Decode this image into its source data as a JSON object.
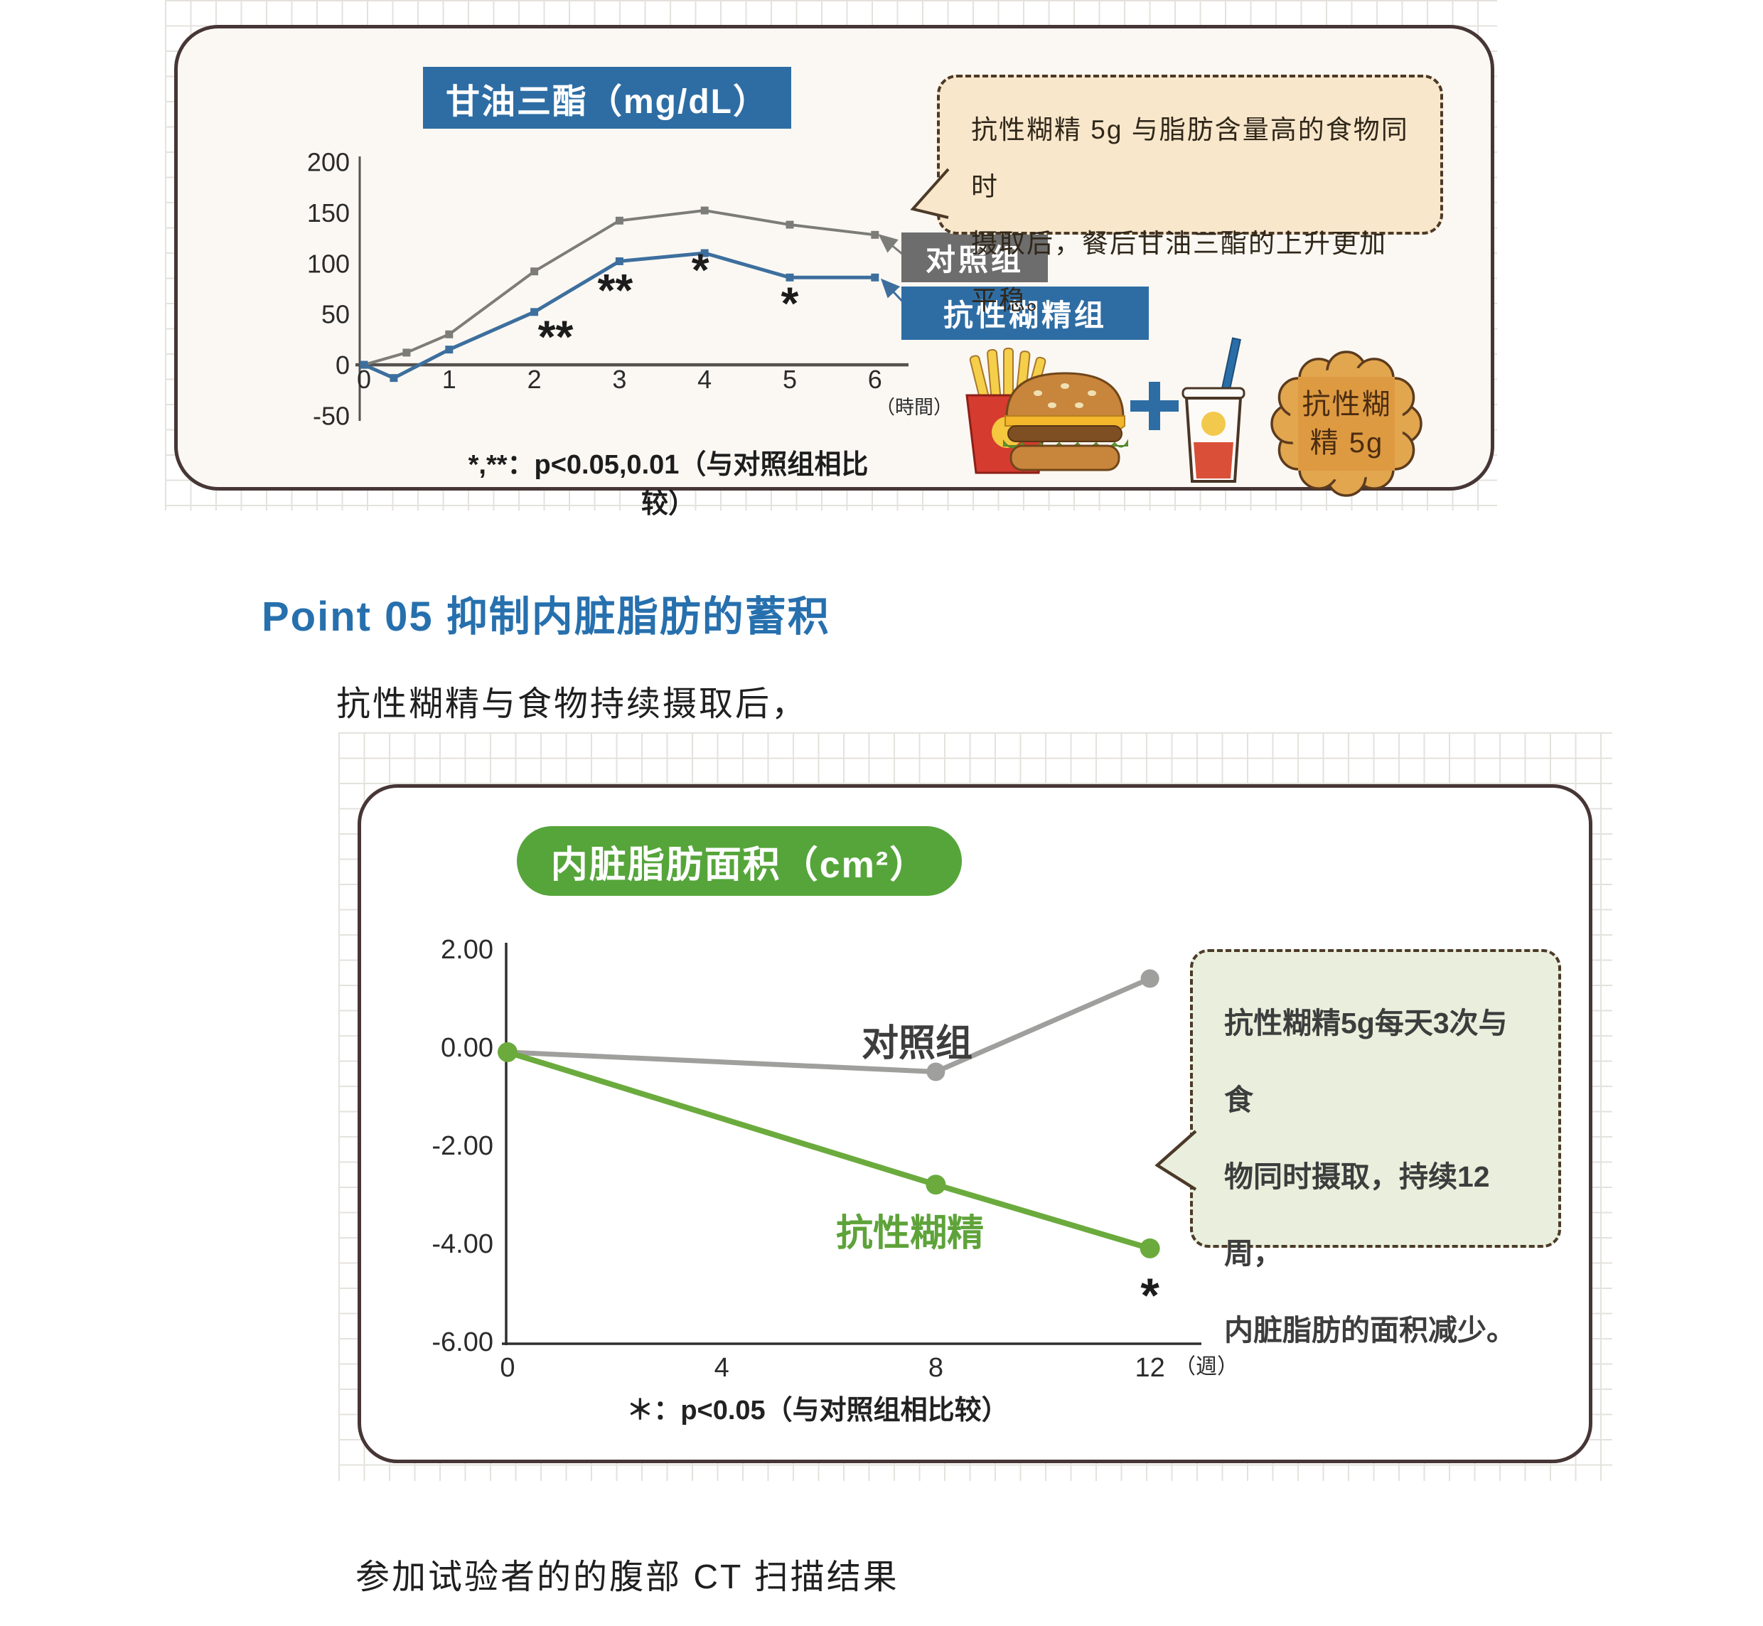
{
  "page": {
    "heading": "Point 05 抑制内脏脂肪的蓄积",
    "intro": "抗性糊精与食物持续摄取后，",
    "footer": "参加试验者的的腹部 CT 扫描结果"
  },
  "top_panel": {
    "bubble_lines": [
      "抗性糊精 5g 与脂肪含量高的食物同时",
      "摄取后，餐后甘油三酯的上升更加平稳。"
    ],
    "badge_lines": [
      "抗性糊",
      "精 5g"
    ]
  },
  "bottom_panel": {
    "bubble_lines": [
      "抗性糊精5g每天3次与食",
      "物同时摄取，持续12周，",
      "内脏脂肪的面积减少。"
    ]
  },
  "colors": {
    "accent_blue": "#2e6da4",
    "legend_gray": "#6d6d6d",
    "banner_green": "#56a53b",
    "bubble_peach": "#f8e7cb",
    "bubble_green": "#e9efdc",
    "line_gray_top": "#7c7c78",
    "line_blue_top": "#3d6f9e",
    "line_gray_bottom": "#9f9f9d",
    "line_green_bottom": "#6bab3e",
    "badge_orange": "#e2a64e"
  },
  "chart_data": [
    {
      "type": "line",
      "title": "甘油三酯（mg/dL）",
      "xlabel": "（時間）",
      "ylabel": "mg/dL",
      "x_ticks": [
        0,
        1,
        2,
        3,
        4,
        5,
        6
      ],
      "y_ticks": [
        200,
        150,
        100,
        50,
        0,
        -50
      ],
      "ylim": [
        -50,
        200
      ],
      "xlim": [
        0,
        6.3
      ],
      "grid": false,
      "legend_position": "right",
      "series": [
        {
          "name": "对照组",
          "color": "#7c7c78",
          "x": [
            0,
            0.5,
            1,
            2,
            3,
            4,
            5,
            6
          ],
          "values": [
            0,
            12,
            30,
            92,
            142,
            152,
            138,
            128
          ]
        },
        {
          "name": "抗性糊精组",
          "color": "#3d6f9e",
          "x": [
            0,
            0.35,
            1,
            2,
            3,
            4,
            5,
            6
          ],
          "values": [
            0,
            -13,
            15,
            52,
            102,
            110,
            86,
            86
          ]
        }
      ],
      "annotations": [
        {
          "text": "**",
          "x": 2.25,
          "y": 22
        },
        {
          "text": "**",
          "x": 2.95,
          "y": 68
        },
        {
          "text": "*",
          "x": 3.95,
          "y": 88
        },
        {
          "text": "*",
          "x": 5.0,
          "y": 55
        }
      ],
      "footnote": "*,**：p<0.05,0.01（与对照组相比较）"
    },
    {
      "type": "line",
      "title": "内脏脂肪面积（cm²）",
      "xlabel": "（週）",
      "ylabel": "cm²",
      "x_ticks": [
        0,
        4,
        8,
        12
      ],
      "y_ticks": [
        "2.00",
        "0.00",
        "-2.00",
        "-4.00",
        "-6.00"
      ],
      "ylim": [
        -6,
        2
      ],
      "xlim": [
        0,
        13
      ],
      "grid": false,
      "series": [
        {
          "name": "对照组",
          "color": "#9f9f9d",
          "x": [
            0,
            8,
            12
          ],
          "values": [
            -0.1,
            -0.5,
            1.4
          ]
        },
        {
          "name": "抗性糊精",
          "color": "#6bab3e",
          "x": [
            0,
            8,
            12
          ],
          "values": [
            -0.1,
            -2.8,
            -4.1
          ]
        }
      ],
      "annotations": [
        {
          "text": "*",
          "x": 12,
          "y": -5.1
        }
      ],
      "footnote": "＊：p<0.05（与对照组相比较）"
    }
  ]
}
